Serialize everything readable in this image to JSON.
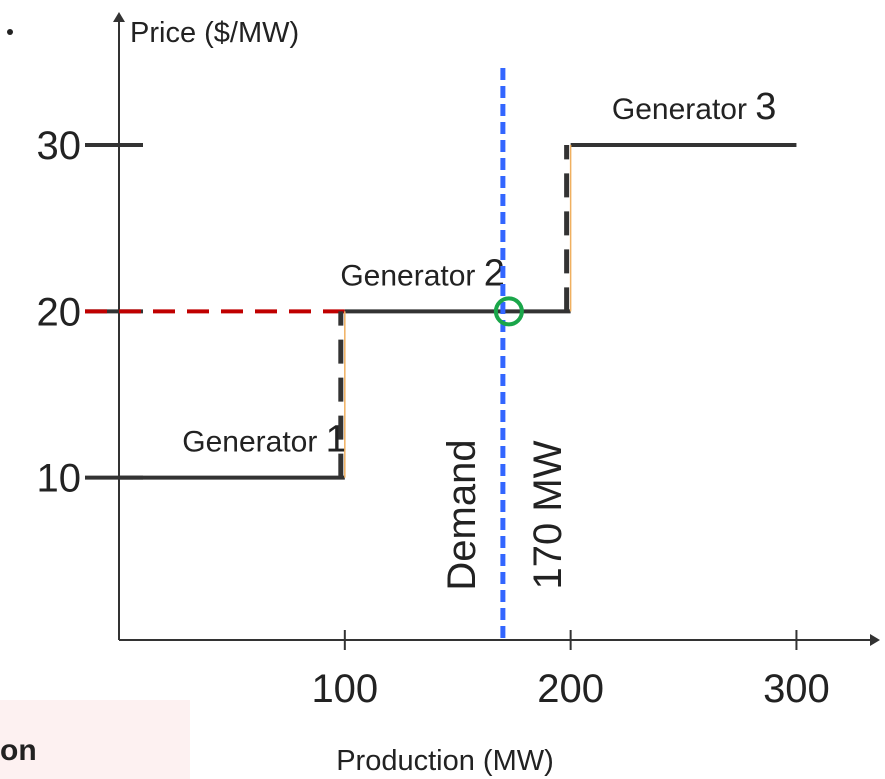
{
  "chart_data": {
    "type": "step",
    "y_label": "Price ($/MW)",
    "x_label": "Production (MW)",
    "xlim": [
      0,
      337
    ],
    "ylim": [
      0,
      38
    ],
    "xticks": [
      100,
      200,
      300
    ],
    "yticks": [
      10,
      20,
      30
    ],
    "line_color": "#333333",
    "segments": [
      {
        "name": "Generator 1",
        "from": 0,
        "to": 100,
        "price": 10
      },
      {
        "name": "Generator 2",
        "from": 100,
        "to": 200,
        "price": 20
      },
      {
        "name": "Generator 3",
        "from": 200,
        "to": 300,
        "price": 30
      }
    ],
    "demand": {
      "label": "Demand",
      "value": 170,
      "value_label": "170 MW",
      "color": "#3366ff"
    },
    "clearing_price": {
      "value": 20,
      "color": "#c00000",
      "marker_color": "#1aa64a"
    },
    "fragment_text": "on"
  }
}
